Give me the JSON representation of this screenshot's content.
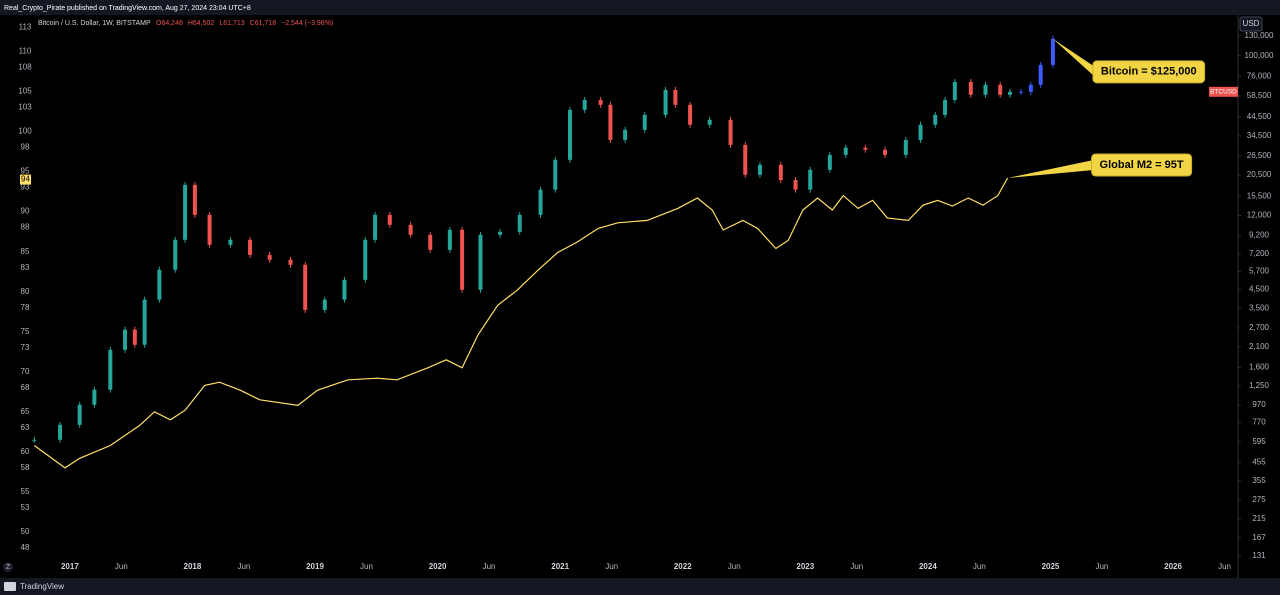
{
  "header": {
    "publisher": "Real_Crypto_Pirate published on TradingView.com, Aug 27, 2024 23:04 UTC+8",
    "symbol": "Bitcoin / U.S. Dollar, 1W, BITSTAMP",
    "ohlc": [
      "O64,248",
      "H64,502",
      "L61,713",
      "C61,718",
      "−2,544 (−3.96%)"
    ],
    "currency": "USD",
    "ticker": "BTCUSD",
    "brand": "TradingView",
    "zoom": "Z"
  },
  "chart_data": {
    "type": "candlestick",
    "grid": false,
    "up_color": "#26a69a",
    "down_color": "#ef5350",
    "xlim": [
      2016.43,
      2026.53
    ],
    "xticks": [
      2017,
      {
        "value": 2017.42,
        "label": "Jun"
      },
      2018,
      {
        "value": 2018.42,
        "label": "Jun"
      },
      2019,
      {
        "value": 2019.42,
        "label": "Jun"
      },
      2020,
      {
        "value": 2020.42,
        "label": "Jun"
      },
      2021,
      {
        "value": 2021.42,
        "label": "Jun"
      },
      2022,
      {
        "value": 2022.42,
        "label": "Jun"
      },
      2023,
      {
        "value": 2023.42,
        "label": "Jun"
      },
      2024,
      {
        "value": 2024.42,
        "label": "Jun"
      },
      2025,
      {
        "value": 2025.42,
        "label": "Jun"
      },
      2026,
      {
        "value": 2026.42,
        "label": "Jun"
      }
    ],
    "ylim": [
      45,
      114.3
    ],
    "yticks": [
      113,
      110,
      108,
      105,
      103,
      100,
      98,
      95,
      93,
      90,
      88,
      85,
      83,
      80,
      78,
      75,
      73,
      70,
      68,
      65,
      63,
      60,
      58,
      55,
      53,
      50,
      48
    ],
    "y2lim": [
      106,
      167000
    ],
    "y2log": true,
    "y2ticks": [
      {
        "value": 130000,
        "label": "130,000"
      },
      {
        "value": 100000,
        "label": "100,000"
      },
      {
        "value": 76000,
        "label": "76,000"
      },
      {
        "value": 58500,
        "label": "58,500"
      },
      {
        "value": 44500,
        "label": "44,500"
      },
      {
        "value": 34500,
        "label": "34,500"
      },
      {
        "value": 26500,
        "label": "26,500"
      },
      {
        "value": 20500,
        "label": "20,500"
      },
      {
        "value": 15500,
        "label": "15,500"
      },
      {
        "value": 12000,
        "label": "12,000"
      },
      {
        "value": 9200,
        "label": "9,200"
      },
      {
        "value": 7200,
        "label": "7,200"
      },
      {
        "value": 5700,
        "label": "5,700"
      },
      {
        "value": 4500,
        "label": "4,500"
      },
      {
        "value": 3500,
        "label": "3,500"
      },
      {
        "value": 2700,
        "label": "2,700"
      },
      {
        "value": 2100,
        "label": "2,100"
      },
      {
        "value": 1600,
        "label": "1,600"
      },
      {
        "value": 1250,
        "label": "1,250"
      },
      970,
      770,
      595,
      455,
      355,
      275,
      215,
      167,
      131
    ],
    "series": [
      {
        "type": "candlestick",
        "axis": "y2",
        "x": [
          2016.71,
          2016.92,
          2017.08,
          2017.2,
          2017.33,
          2017.45,
          2017.53,
          2017.61,
          2017.73,
          2017.86,
          2017.94,
          2018.02,
          2018.14,
          2018.31,
          2018.47,
          2018.63,
          2018.8,
          2018.92,
          2019.08,
          2019.24,
          2019.41,
          2019.49,
          2019.61,
          2019.78,
          2019.94,
          2020.1,
          2020.2,
          2020.35,
          2020.51,
          2020.67,
          2020.84,
          2020.96,
          2021.08,
          2021.2,
          2021.33,
          2021.41,
          2021.53,
          2021.69,
          2021.86,
          2021.94,
          2022.06,
          2022.22,
          2022.39,
          2022.51,
          2022.63,
          2022.8,
          2022.92,
          2023.04,
          2023.2,
          2023.33,
          2023.49,
          2023.65,
          2023.82,
          2023.94,
          2024.06,
          2024.14,
          2024.22,
          2024.35,
          2024.47,
          2024.59,
          2024.67
        ],
        "values": [
          612,
          747,
          974,
          1190,
          2020,
          2640,
          2160,
          3930,
          5840,
          8690,
          18000,
          12100,
          8130,
          8690,
          7120,
          6670,
          6240,
          3430,
          3930,
          5110,
          8690,
          12100,
          10600,
          9290,
          7610,
          9920,
          4480,
          9290,
          9660,
          12100,
          16900,
          25100,
          48700,
          55600,
          52100,
          32700,
          37400,
          45600,
          63500,
          52100,
          40000,
          42700,
          30600,
          20600,
          23500,
          19200,
          16900,
          22000,
          26800,
          29500,
          28700,
          26800,
          32700,
          40000,
          45600,
          55600,
          70600,
          59500,
          67900,
          59500,
          61900
        ]
      },
      {
        "type": "candlestick",
        "axis": "y2",
        "color": "#3d5afe",
        "annotation": "Bitcoin = $125,000",
        "x": [
          2024.76,
          2024.84,
          2024.92,
          2025.02
        ],
        "values": [
          61900,
          67900,
          88500,
          125000
        ]
      },
      {
        "type": "line",
        "axis": "y",
        "color": "#ffe066",
        "annotation": "Global M2 = 95T",
        "current_value": 94,
        "x": [
          2016.71,
          2016.96,
          2017.08,
          2017.33,
          2017.57,
          2017.69,
          2017.82,
          2017.94,
          2018.1,
          2018.22,
          2018.39,
          2018.55,
          2018.86,
          2019.02,
          2019.27,
          2019.51,
          2019.67,
          2019.92,
          2020.07,
          2020.2,
          2020.33,
          2020.49,
          2020.65,
          2020.82,
          2020.98,
          2021.14,
          2021.31,
          2021.47,
          2021.71,
          2021.96,
          2022.12,
          2022.24,
          2022.33,
          2022.49,
          2022.61,
          2022.76,
          2022.86,
          2022.98,
          2023.1,
          2023.22,
          2023.31,
          2023.43,
          2023.55,
          2023.67,
          2023.84,
          2023.96,
          2024.08,
          2024.2,
          2024.33,
          2024.45,
          2024.57,
          2024.65
        ],
        "values": [
          60.8,
          58.0,
          59.2,
          60.8,
          63.3,
          65.0,
          64.0,
          65.2,
          68.3,
          68.7,
          67.7,
          66.5,
          65.8,
          67.7,
          69.0,
          69.2,
          69.0,
          70.5,
          71.5,
          70.5,
          74.6,
          78.3,
          80.2,
          82.7,
          84.9,
          86.2,
          87.9,
          88.6,
          88.9,
          90.4,
          91.7,
          90.2,
          87.7,
          88.9,
          87.9,
          85.4,
          86.4,
          90.2,
          91.7,
          90.2,
          92.0,
          90.4,
          91.4,
          89.2,
          88.9,
          90.8,
          91.4,
          90.7,
          91.7,
          90.8,
          92.0,
          94.2
        ]
      }
    ]
  }
}
